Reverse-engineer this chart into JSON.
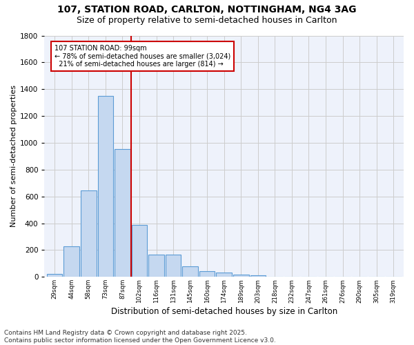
{
  "title1": "107, STATION ROAD, CARLTON, NOTTINGHAM, NG4 3AG",
  "title2": "Size of property relative to semi-detached houses in Carlton",
  "xlabel": "Distribution of semi-detached houses by size in Carlton",
  "ylabel": "Number of semi-detached properties",
  "footer1": "Contains HM Land Registry data © Crown copyright and database right 2025.",
  "footer2": "Contains public sector information licensed under the Open Government Licence v3.0.",
  "bin_labels": [
    "29sqm",
    "44sqm",
    "58sqm",
    "73sqm",
    "87sqm",
    "102sqm",
    "116sqm",
    "131sqm",
    "145sqm",
    "160sqm",
    "174sqm",
    "189sqm",
    "203sqm",
    "218sqm",
    "232sqm",
    "247sqm",
    "261sqm",
    "276sqm",
    "290sqm",
    "305sqm",
    "319sqm"
  ],
  "bin_edges": [
    0,
    1,
    2,
    3,
    4,
    5,
    6,
    7,
    8,
    9,
    10,
    11,
    12,
    13,
    14,
    15,
    16,
    17,
    18,
    19,
    20
  ],
  "bar_values": [
    20,
    230,
    645,
    1350,
    955,
    390,
    165,
    165,
    80,
    45,
    30,
    15,
    10,
    0,
    0,
    0,
    0,
    0,
    0,
    0,
    0
  ],
  "bar_color": "#c5d8f0",
  "bar_edge_color": "#5b9bd5",
  "property_line_x": 5,
  "red_line_color": "#cc0000",
  "annotation_text1": "107 STATION ROAD: 99sqm",
  "annotation_text2": "← 78% of semi-detached houses are smaller (3,024)",
  "annotation_text3": "  21% of semi-detached houses are larger (814) →",
  "annotation_box_color": "#ffffff",
  "annotation_box_edge": "#cc0000",
  "ylim": [
    0,
    1800
  ],
  "yticks": [
    0,
    200,
    400,
    600,
    800,
    1000,
    1200,
    1400,
    1600,
    1800
  ],
  "grid_color": "#cccccc",
  "bg_color": "#eef2fb",
  "title1_fontsize": 10,
  "title2_fontsize": 9,
  "xlabel_fontsize": 8.5,
  "ylabel_fontsize": 8,
  "footer_fontsize": 6.5,
  "ann_fontsize": 7
}
